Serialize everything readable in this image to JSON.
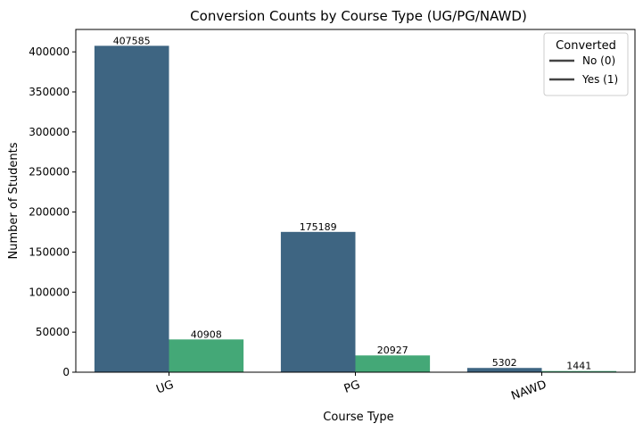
{
  "chart_data": {
    "type": "bar",
    "title": "Conversion Counts by Course Type (UG/PG/NAWD)",
    "xlabel": "Course Type",
    "ylabel": "Number of Students",
    "categories": [
      "UG",
      "PG",
      "NAWD"
    ],
    "series": [
      {
        "name": "No (0)",
        "values": [
          407585,
          175189,
          5302
        ],
        "labels": [
          "407585",
          "175189",
          "5302"
        ]
      },
      {
        "name": "Yes (1)",
        "values": [
          40908,
          20927,
          1441
        ],
        "labels": [
          "40908",
          "20927",
          "1441"
        ]
      }
    ],
    "ylim": [
      0,
      428000
    ],
    "yticks": [
      0,
      50000,
      100000,
      150000,
      200000,
      250000,
      300000,
      350000,
      400000
    ],
    "ytick_labels": [
      "0",
      "50000",
      "100000",
      "150000",
      "200000",
      "250000",
      "300000",
      "350000",
      "400000"
    ],
    "legend": {
      "title": "Converted",
      "placement": "top-right",
      "entries": [
        "No (0)",
        "Yes (1)"
      ]
    },
    "colors": {
      "No (0)": "#3e6582",
      "Yes (1)": "#44a877",
      "legend_line": "#444444",
      "axis": "#000000"
    },
    "grid": false
  }
}
